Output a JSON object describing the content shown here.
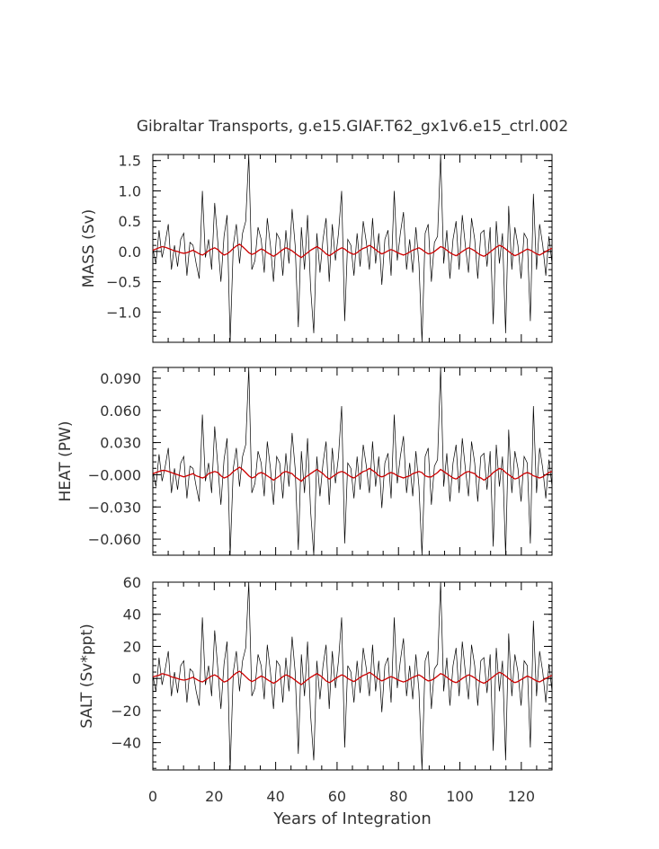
{
  "title": "Gibraltar Transports, g.e15.GIAF.T62_gx1v6.e15_ctrl.002",
  "colors": {
    "raw": "#000000",
    "smooth": "#cc0000"
  },
  "chart_data": {
    "type": "line",
    "title": "Gibraltar Transports, g.e15.GIAF.T62_gx1v6.e15_ctrl.002",
    "xlabel": "Years of Integration",
    "xlim": [
      0,
      130
    ],
    "x_ticks": [
      "0",
      "20",
      "40",
      "60",
      "80",
      "100",
      "120"
    ],
    "raw_series_sampled_per_year": true,
    "smooth_series_color": "red",
    "panels": [
      {
        "ylabel": "MASS (Sv)",
        "ylim": [
          -1.5,
          1.6
        ],
        "y_ticks": [
          "1.5",
          "1.0",
          "0.5",
          "0.0",
          "−0.5",
          "−1.0"
        ],
        "y_tick_values": [
          1.5,
          1.0,
          0.5,
          0.0,
          -0.5,
          -1.0
        ],
        "series": [
          {
            "values": [
              0.05,
              -0.2,
              0.35,
              -0.1,
              0.15,
              0.45,
              -0.3,
              0.1,
              -0.25,
              0.2,
              0.3,
              -0.4,
              0.15,
              0.1,
              -0.2,
              -0.45,
              1.0,
              -0.1,
              0.2,
              -0.3,
              0.8,
              0.15,
              -0.5,
              0.25,
              0.6,
              -1.5,
              0.1,
              0.45,
              -0.2,
              0.3,
              0.5,
              1.6,
              -0.3,
              -0.15,
              0.4,
              0.2,
              -0.35,
              0.55,
              0.1,
              -0.5,
              0.3,
              0.2,
              -0.4,
              0.35,
              -0.2,
              0.7,
              0.1,
              -1.25,
              0.4,
              -0.3,
              0.6,
              -0.6,
              -1.35,
              0.3,
              -0.35,
              0.2,
              0.55,
              -0.5,
              0.45,
              -0.15,
              0.3,
              1.0,
              -1.15,
              0.2,
              0.1,
              -0.4,
              0.3,
              -0.25,
              0.5,
              0.15,
              -0.3,
              0.55,
              -0.2,
              0.3,
              -0.55,
              0.2,
              0.35,
              -0.4,
              1.0,
              -0.15,
              0.3,
              0.65,
              -0.3,
              0.2,
              -0.35,
              0.4,
              -0.2,
              -1.5,
              0.3,
              0.45,
              -0.5,
              0.15,
              0.25,
              1.6,
              -0.2,
              0.35,
              -0.45,
              0.2,
              0.5,
              -0.3,
              0.6,
              0.1,
              -0.35,
              0.55,
              0.2,
              -0.45,
              0.3,
              0.35,
              -0.25,
              0.4,
              -1.2,
              0.5,
              -0.2,
              0.3,
              -1.35,
              0.75,
              -0.3,
              0.4,
              0.1,
              -0.45,
              0.3,
              0.2,
              -1.15,
              0.95,
              -0.3,
              0.45,
              0.1,
              -0.4,
              0.25,
              -0.2
            ]
          },
          {
            "values": [
              0.02,
              0.04,
              0.06,
              0.08,
              0.07,
              0.05,
              0.03,
              0.01,
              0.0,
              -0.02,
              -0.03,
              -0.02,
              0.0,
              0.02,
              -0.01,
              -0.04,
              -0.06,
              -0.03,
              0.01,
              0.04,
              0.06,
              0.03,
              -0.02,
              -0.06,
              -0.04,
              0.0,
              0.05,
              0.09,
              0.12,
              0.08,
              0.03,
              -0.02,
              -0.05,
              -0.03,
              0.01,
              0.04,
              0.02,
              -0.02,
              -0.05,
              -0.08,
              -0.05,
              -0.01,
              0.03,
              0.06,
              0.04,
              0.01,
              -0.03,
              -0.07,
              -0.1,
              -0.06,
              -0.02,
              0.02,
              0.05,
              0.08,
              0.05,
              0.01,
              -0.04,
              -0.07,
              -0.04,
              0.0,
              0.03,
              0.06,
              0.04,
              0.0,
              -0.03,
              -0.05,
              -0.02,
              0.02,
              0.05,
              0.07,
              0.1,
              0.07,
              0.03,
              -0.01,
              -0.04,
              -0.02,
              0.01,
              0.03,
              0.01,
              -0.02,
              -0.04,
              -0.06,
              -0.04,
              -0.01,
              0.02,
              0.04,
              0.06,
              0.03,
              -0.01,
              -0.04,
              -0.03,
              0.0,
              0.04,
              0.08,
              0.06,
              0.02,
              -0.02,
              -0.05,
              -0.07,
              -0.04,
              0.0,
              0.03,
              0.06,
              0.04,
              0.01,
              -0.03,
              -0.06,
              -0.08,
              -0.05,
              -0.01,
              0.03,
              0.07,
              0.1,
              0.08,
              0.04,
              0.0,
              -0.04,
              -0.07,
              -0.05,
              -0.02,
              0.01,
              0.04,
              0.02,
              -0.01,
              -0.04,
              -0.06,
              -0.03,
              0.0,
              0.03,
              0.05
            ]
          }
        ]
      },
      {
        "ylabel": "HEAT (PW)",
        "ylim": [
          -0.075,
          0.1
        ],
        "y_ticks": [
          "0.090",
          "0.060",
          "0.030",
          "−0.000",
          "−0.030",
          "−0.060"
        ],
        "y_tick_values": [
          0.09,
          0.06,
          0.03,
          0.0,
          -0.03,
          -0.06
        ],
        "series": [
          {
            "values": [
              0.003,
              -0.011,
              0.019,
              -0.006,
              0.008,
              0.025,
              -0.017,
              0.006,
              -0.014,
              0.011,
              0.017,
              -0.022,
              0.008,
              0.006,
              -0.011,
              -0.025,
              0.056,
              -0.006,
              0.011,
              -0.017,
              0.045,
              0.008,
              -0.028,
              0.014,
              0.034,
              -0.08,
              0.006,
              0.025,
              -0.011,
              0.017,
              0.028,
              0.1,
              -0.017,
              -0.008,
              0.022,
              0.011,
              -0.02,
              0.031,
              0.006,
              -0.028,
              0.017,
              0.011,
              -0.022,
              0.02,
              -0.011,
              0.039,
              0.006,
              -0.07,
              0.022,
              -0.017,
              0.034,
              -0.034,
              -0.076,
              0.017,
              -0.02,
              0.011,
              0.031,
              -0.028,
              0.025,
              -0.008,
              0.017,
              0.064,
              -0.064,
              0.011,
              0.006,
              -0.022,
              0.017,
              -0.014,
              0.028,
              0.008,
              -0.017,
              0.031,
              -0.011,
              0.017,
              -0.031,
              0.011,
              0.02,
              -0.022,
              0.056,
              -0.008,
              0.017,
              0.036,
              -0.017,
              0.011,
              -0.02,
              0.022,
              -0.011,
              -0.08,
              0.017,
              0.025,
              -0.028,
              0.008,
              0.014,
              0.1,
              -0.011,
              0.02,
              -0.025,
              0.011,
              0.028,
              -0.017,
              0.034,
              0.006,
              -0.02,
              0.031,
              0.011,
              -0.025,
              0.017,
              0.02,
              -0.014,
              0.022,
              -0.067,
              0.028,
              -0.011,
              0.017,
              -0.076,
              0.042,
              -0.017,
              0.022,
              0.006,
              -0.025,
              0.017,
              0.011,
              -0.064,
              0.064,
              -0.017,
              0.025,
              0.006,
              -0.022,
              0.014,
              -0.011
            ]
          },
          {
            "values": [
              0.001,
              0.002,
              0.003,
              0.004,
              0.004,
              0.003,
              0.002,
              0.001,
              0.0,
              -0.001,
              -0.002,
              -0.001,
              0.0,
              0.001,
              -0.001,
              -0.002,
              -0.003,
              -0.002,
              0.001,
              0.002,
              0.003,
              0.002,
              -0.001,
              -0.003,
              -0.002,
              0.0,
              0.003,
              0.005,
              0.007,
              0.005,
              0.002,
              -0.001,
              -0.003,
              -0.002,
              0.001,
              0.002,
              0.001,
              -0.001,
              -0.003,
              -0.005,
              -0.003,
              -0.001,
              0.002,
              0.003,
              0.002,
              0.001,
              -0.002,
              -0.004,
              -0.006,
              -0.003,
              -0.001,
              0.001,
              0.003,
              0.005,
              0.003,
              0.001,
              -0.002,
              -0.004,
              -0.002,
              0.0,
              0.002,
              0.003,
              0.002,
              0.0,
              -0.002,
              -0.003,
              -0.001,
              0.001,
              0.003,
              0.004,
              0.006,
              0.004,
              0.002,
              -0.001,
              -0.002,
              -0.001,
              0.001,
              0.002,
              0.001,
              -0.001,
              -0.002,
              -0.003,
              -0.002,
              -0.001,
              0.001,
              0.002,
              0.003,
              0.002,
              -0.001,
              -0.002,
              -0.002,
              0.0,
              0.002,
              0.005,
              0.003,
              0.001,
              -0.001,
              -0.003,
              -0.004,
              -0.002,
              0.0,
              0.002,
              0.003,
              0.002,
              0.001,
              -0.002,
              -0.003,
              -0.005,
              -0.003,
              -0.001,
              0.002,
              0.004,
              0.006,
              0.005,
              0.002,
              0.0,
              -0.002,
              -0.004,
              -0.003,
              -0.001,
              0.001,
              0.002,
              0.001,
              -0.001,
              -0.002,
              -0.003,
              -0.002,
              0.0,
              0.002,
              0.003
            ]
          }
        ]
      },
      {
        "ylabel": "SALT (Sv*ppt)",
        "ylim": [
          -57,
          60
        ],
        "y_ticks": [
          "60",
          "40",
          "20",
          "0",
          "−20",
          "−40"
        ],
        "y_tick_values": [
          60,
          40,
          20,
          0,
          -20,
          -40
        ],
        "series": [
          {
            "values": [
              2,
              -8,
              13,
              -4,
              6,
              17,
              -11,
              4,
              -9,
              8,
              11,
              -15,
              6,
              4,
              -8,
              -17,
              38,
              -4,
              8,
              -11,
              30,
              6,
              -19,
              9,
              23,
              -57,
              4,
              17,
              -8,
              11,
              19,
              60,
              -11,
              -6,
              15,
              8,
              -13,
              21,
              4,
              -19,
              11,
              8,
              -15,
              13,
              -8,
              26,
              4,
              -47,
              15,
              -11,
              23,
              -23,
              -51,
              11,
              -13,
              8,
              21,
              -19,
              17,
              -6,
              11,
              38,
              -43,
              8,
              4,
              -15,
              11,
              -9,
              19,
              6,
              -11,
              21,
              -8,
              11,
              -21,
              8,
              13,
              -15,
              38,
              -6,
              11,
              25,
              -11,
              8,
              -13,
              15,
              -8,
              -57,
              11,
              17,
              -19,
              6,
              9,
              60,
              -8,
              13,
              -17,
              8,
              19,
              -11,
              23,
              4,
              -13,
              21,
              8,
              -17,
              11,
              13,
              -9,
              15,
              -45,
              19,
              -8,
              11,
              -51,
              28,
              -11,
              15,
              4,
              -17,
              11,
              8,
              -43,
              36,
              -11,
              17,
              4,
              -15,
              9,
              -8
            ]
          },
          {
            "values": [
              1,
              1.5,
              2,
              3,
              2.5,
              2,
              1,
              0.5,
              0,
              -0.7,
              -1,
              -0.7,
              0,
              0.7,
              -0.4,
              -1.5,
              -2.2,
              -1.1,
              0.4,
              1.5,
              2.2,
              1.1,
              -0.7,
              -2.2,
              -1.5,
              0,
              1.9,
              3.4,
              4.5,
              3,
              1.1,
              -0.7,
              -1.9,
              -1.1,
              0.4,
              1.5,
              0.7,
              -0.7,
              -1.9,
              -3,
              -1.9,
              -0.4,
              1.1,
              2.2,
              1.5,
              0.4,
              -1.1,
              -2.6,
              -3.8,
              -2.2,
              -0.7,
              0.7,
              1.9,
              3,
              1.9,
              0.4,
              -1.5,
              -2.6,
              -1.5,
              0,
              1.1,
              2.2,
              1.5,
              0,
              -1.1,
              -1.9,
              -0.7,
              0.7,
              1.9,
              2.6,
              3.8,
              2.6,
              1.1,
              -0.4,
              -1.5,
              -0.7,
              0.4,
              1.1,
              0.4,
              -0.7,
              -1.5,
              -2.2,
              -1.5,
              -0.4,
              0.7,
              1.5,
              2.2,
              1.1,
              -0.4,
              -1.5,
              -1.1,
              0,
              1.5,
              3,
              2.2,
              0.7,
              -0.7,
              -1.9,
              -2.6,
              -1.5,
              0,
              1.1,
              2.2,
              1.5,
              0.4,
              -1.1,
              -2.2,
              -3,
              -1.9,
              -0.4,
              1.1,
              2.6,
              3.8,
              3,
              1.5,
              0,
              -1.5,
              -2.6,
              -1.9,
              -0.7,
              0.4,
              1.5,
              0.7,
              -0.4,
              -1.5,
              -2.2,
              -1.1,
              0,
              1.1,
              1.9
            ]
          }
        ]
      }
    ]
  }
}
